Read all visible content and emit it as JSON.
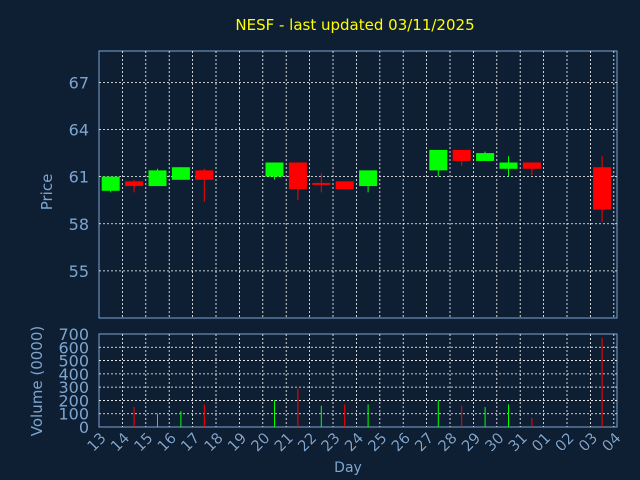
{
  "colors": {
    "background": "#0f1f33",
    "title": "#ffff00",
    "axis_text": "#7da5d0",
    "grid": "#ffffff",
    "up": "#00ff00",
    "down": "#ff0000",
    "day_label": "#000000"
  },
  "chart_data": [
    {
      "type": "candlestick",
      "title": "NESF - last updated 03/11/2025",
      "xlabel": "Day",
      "ylabel": "Price",
      "ylim": [
        52,
        69
      ],
      "yticks": [
        55,
        58,
        61,
        64,
        67
      ],
      "grid": true,
      "categories": [
        "13",
        "14",
        "15",
        "16",
        "17",
        "18",
        "19",
        "20",
        "21",
        "22",
        "23",
        "24",
        "25",
        "26",
        "27",
        "28",
        "29",
        "30",
        "31",
        "01",
        "02",
        "03",
        "04"
      ],
      "candles": [
        {
          "day": "13",
          "open": 60.1,
          "close": 61.0,
          "high": 61.0,
          "low": 60.0
        },
        {
          "day": "14",
          "open": 60.7,
          "close": 60.4,
          "high": 60.8,
          "low": 60.0
        },
        {
          "day": "15",
          "open": 60.4,
          "close": 61.4,
          "high": 61.5,
          "low": 60.4
        },
        {
          "day": "16",
          "open": 60.8,
          "close": 61.6,
          "high": 61.6,
          "low": 60.8
        },
        {
          "day": "17",
          "open": 61.4,
          "close": 60.8,
          "high": 61.5,
          "low": 59.4
        },
        {
          "day": "20",
          "open": 61.0,
          "close": 61.9,
          "high": 61.9,
          "low": 60.8
        },
        {
          "day": "21",
          "open": 61.9,
          "close": 60.2,
          "high": 61.9,
          "low": 59.5
        },
        {
          "day": "22",
          "open": 60.6,
          "close": 60.5,
          "high": 61.2,
          "low": 60.0
        },
        {
          "day": "23",
          "open": 60.7,
          "close": 60.2,
          "high": 60.7,
          "low": 60.2
        },
        {
          "day": "24",
          "open": 60.4,
          "close": 61.4,
          "high": 61.4,
          "low": 60.0
        },
        {
          "day": "27",
          "open": 61.4,
          "close": 62.7,
          "high": 62.7,
          "low": 61.0
        },
        {
          "day": "28",
          "open": 62.7,
          "close": 62.0,
          "high": 62.7,
          "low": 61.7
        },
        {
          "day": "29",
          "open": 62.0,
          "close": 62.5,
          "high": 62.6,
          "low": 62.0
        },
        {
          "day": "30",
          "open": 61.5,
          "close": 61.9,
          "high": 62.3,
          "low": 61.0
        },
        {
          "day": "31",
          "open": 61.9,
          "close": 61.5,
          "high": 61.9,
          "low": 61.1
        },
        {
          "day": "03",
          "open": 61.6,
          "close": 58.9,
          "high": 62.3,
          "low": 58.1
        }
      ]
    },
    {
      "type": "bar",
      "ylabel": "Volume (0000)",
      "ylim": [
        0,
        700
      ],
      "yticks": [
        0,
        100,
        200,
        300,
        400,
        500,
        600,
        700
      ],
      "categories": [
        "13",
        "14",
        "15",
        "16",
        "17",
        "18",
        "19",
        "20",
        "21",
        "22",
        "23",
        "24",
        "25",
        "26",
        "27",
        "28",
        "29",
        "30",
        "31",
        "01",
        "02",
        "03",
        "04"
      ],
      "values": [
        {
          "day": "14",
          "value": 150,
          "up": false
        },
        {
          "day": "15",
          "value": 100,
          "up": true
        },
        {
          "day": "16",
          "value": 120,
          "up": true
        },
        {
          "day": "17",
          "value": 170,
          "up": false
        },
        {
          "day": "20",
          "value": 200,
          "up": true
        },
        {
          "day": "21",
          "value": 290,
          "up": false
        },
        {
          "day": "22",
          "value": 160,
          "up": true
        },
        {
          "day": "23",
          "value": 170,
          "up": false
        },
        {
          "day": "24",
          "value": 170,
          "up": true
        },
        {
          "day": "27",
          "value": 200,
          "up": true
        },
        {
          "day": "28",
          "value": 160,
          "up": false
        },
        {
          "day": "29",
          "value": 150,
          "up": true
        },
        {
          "day": "30",
          "value": 170,
          "up": true
        },
        {
          "day": "31",
          "value": 70,
          "up": false
        },
        {
          "day": "03",
          "value": 670,
          "up": false
        }
      ]
    }
  ]
}
